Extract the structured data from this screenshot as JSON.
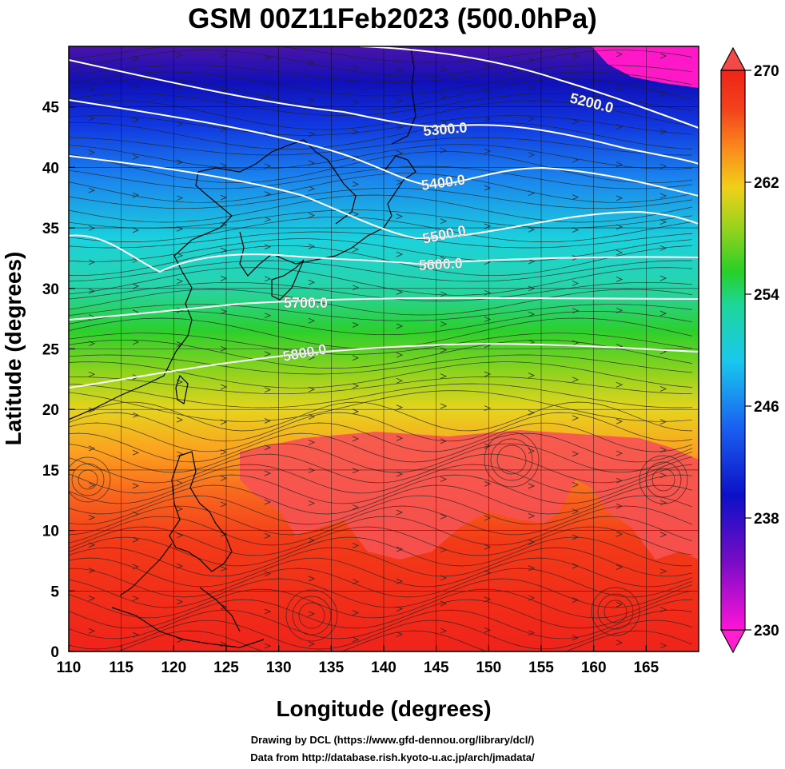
{
  "title": "GSM 00Z11Feb2023 (500.0hPa)",
  "footer": {
    "line1": "Drawing by DCL (https://www.gfd-dennou.org/library/dcl/)",
    "line2": "Data from http://database.rish.kyoto-u.ac.jp/arch/jmadata/"
  },
  "axes": {
    "xlabel": "Longitude (degrees)",
    "ylabel": "Latitude  (degrees)",
    "xlim": [
      110,
      170
    ],
    "ylim": [
      0,
      50
    ],
    "xticks": [
      "110",
      "115",
      "120",
      "125",
      "130",
      "135",
      "140",
      "145",
      "150",
      "155",
      "160",
      "165"
    ],
    "yticks": [
      "0",
      "5",
      "10",
      "15",
      "20",
      "25",
      "30",
      "35",
      "40",
      "45"
    ]
  },
  "colorbar": {
    "min": 230,
    "max": 270,
    "tick_labels": [
      "270",
      "262",
      "254",
      "246",
      "238",
      "230"
    ]
  },
  "contours": {
    "color": "#ffffff",
    "labels": [
      "5200.0",
      "5300.0",
      "5400.0",
      "5500.0",
      "5600.0",
      "5700.0",
      "5800.0"
    ]
  },
  "chart_data": {
    "type": "heatmap",
    "title": "GSM 00Z11Feb2023 (500.0hPa)",
    "xlabel": "Longitude (degrees)",
    "ylabel": "Latitude  (degrees)",
    "xlim": [
      110,
      170
    ],
    "ylim": [
      0,
      50
    ],
    "colorbar_range": [
      230,
      270
    ],
    "contour_levels": [
      5200,
      5300,
      5400,
      5500,
      5600,
      5700,
      5800
    ],
    "overlays": [
      "streamlines",
      "coastlines",
      "lat-lon grid"
    ]
  }
}
